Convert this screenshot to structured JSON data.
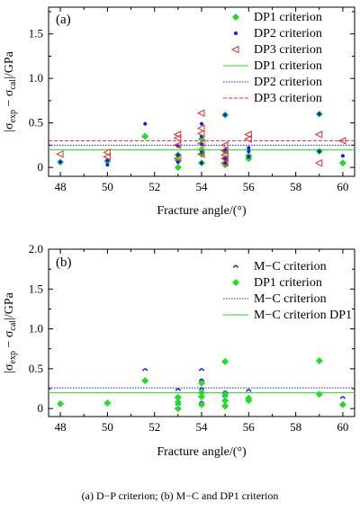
{
  "caption": "(a)   D−P   criterion; (b) M−C and DP1 criterion",
  "colors": {
    "green": "#22dd22",
    "blue": "#1a1aee",
    "red": "#e03030",
    "axis": "#000000"
  },
  "chart_data": [
    {
      "type": "scatter",
      "panel_label": "(a)",
      "xlabel": "Fracture angle/(°)",
      "ylabel": "|σexp − σcal|/GPa",
      "xlim": [
        47.5,
        60.5
      ],
      "ylim": [
        -0.1,
        1.8
      ],
      "xticks": [
        "48",
        "50",
        "52",
        "54",
        "56",
        "58",
        "60"
      ],
      "yticks": [
        "0",
        "0.5",
        "1.0",
        "1.5"
      ],
      "legend_position": "top-right",
      "series": [
        {
          "name": "DP1 criterion",
          "marker": "diamond",
          "color": "#22dd22",
          "x": [
            48,
            50,
            51.6,
            53,
            53,
            53,
            54,
            54,
            54,
            54,
            55,
            55,
            55,
            55,
            56,
            56,
            59,
            59,
            60
          ],
          "y": [
            0.06,
            0.07,
            0.35,
            0.0,
            0.08,
            0.14,
            0.05,
            0.15,
            0.2,
            0.32,
            0.03,
            0.1,
            0.18,
            0.59,
            0.1,
            0.13,
            0.6,
            0.18,
            0.05
          ]
        },
        {
          "name": "DP2 criterion",
          "marker": "dot",
          "color": "#1a1aee",
          "x": [
            48,
            50,
            50,
            51.6,
            53,
            53,
            53,
            54,
            54,
            54,
            54,
            54,
            55,
            55,
            55,
            55,
            56,
            56,
            56,
            59,
            59,
            60
          ],
          "y": [
            0.06,
            0.03,
            0.08,
            0.49,
            0.06,
            0.14,
            0.24,
            0.05,
            0.17,
            0.26,
            0.35,
            0.49,
            0.05,
            0.1,
            0.2,
            0.59,
            0.12,
            0.18,
            0.22,
            0.6,
            0.18,
            0.13
          ]
        },
        {
          "name": "DP3 criterion",
          "marker": "triangle-left",
          "color": "#e03030",
          "x": [
            48,
            50,
            50,
            53,
            53,
            53,
            53,
            54,
            54,
            54,
            54,
            54,
            55,
            55,
            55,
            55,
            55,
            56,
            56,
            59,
            59,
            60
          ],
          "y": [
            0.15,
            0.12,
            0.17,
            0.1,
            0.25,
            0.33,
            0.37,
            0.15,
            0.27,
            0.38,
            0.44,
            0.61,
            0.05,
            0.1,
            0.14,
            0.19,
            0.25,
            0.32,
            0.37,
            0.37,
            0.05,
            0.3
          ]
        },
        {
          "name": "DP1 criterion",
          "line": "solid",
          "color": "#22dd22",
          "y_const": 0.2
        },
        {
          "name": "DP2 criterion",
          "line": "dotted",
          "color": "#1a1aee",
          "y_const": 0.25
        },
        {
          "name": "DP3 criterion",
          "line": "dashed",
          "color": "#e03030",
          "y_const": 0.3
        }
      ]
    },
    {
      "type": "scatter",
      "panel_label": "(b)",
      "xlabel": "Fracture angle/(°)",
      "ylabel": "|σexp − σcal|/GPa",
      "xlim": [
        47.5,
        60.5
      ],
      "ylim": [
        -0.1,
        2.0
      ],
      "xticks": [
        "48",
        "50",
        "52",
        "54",
        "56",
        "58",
        "60"
      ],
      "yticks": [
        "0",
        "0.5",
        "1.0",
        "1.5",
        "2.0"
      ],
      "legend_position": "top-right",
      "series": [
        {
          "name": "M−C criterion",
          "marker": "cap",
          "color": "#1a1aee",
          "x": [
            48,
            50,
            51.6,
            53,
            53,
            53,
            54,
            54,
            54,
            54,
            54,
            55,
            55,
            55,
            55,
            55,
            56,
            56,
            59,
            59,
            60
          ],
          "y": [
            0.06,
            0.07,
            0.49,
            0.06,
            0.15,
            0.24,
            0.08,
            0.15,
            0.25,
            0.36,
            0.49,
            0.05,
            0.1,
            0.16,
            0.21,
            0.59,
            0.13,
            0.23,
            0.6,
            0.18,
            0.14
          ]
        },
        {
          "name": "DP1 criterion",
          "marker": "diamond",
          "color": "#22dd22",
          "x": [
            48,
            50,
            51.6,
            53,
            53,
            53,
            54,
            54,
            54,
            54,
            55,
            55,
            55,
            55,
            56,
            56,
            59,
            59,
            60
          ],
          "y": [
            0.06,
            0.07,
            0.35,
            0.0,
            0.08,
            0.14,
            0.05,
            0.15,
            0.2,
            0.32,
            0.03,
            0.1,
            0.18,
            0.59,
            0.1,
            0.13,
            0.6,
            0.18,
            0.05
          ]
        },
        {
          "name": "M−C criterion",
          "line": "dotted",
          "color": "#1a1aee",
          "y_const": 0.26
        },
        {
          "name": "M−C criterion DP1",
          "line": "solid",
          "color": "#22dd22",
          "y_const": 0.2
        }
      ]
    }
  ]
}
